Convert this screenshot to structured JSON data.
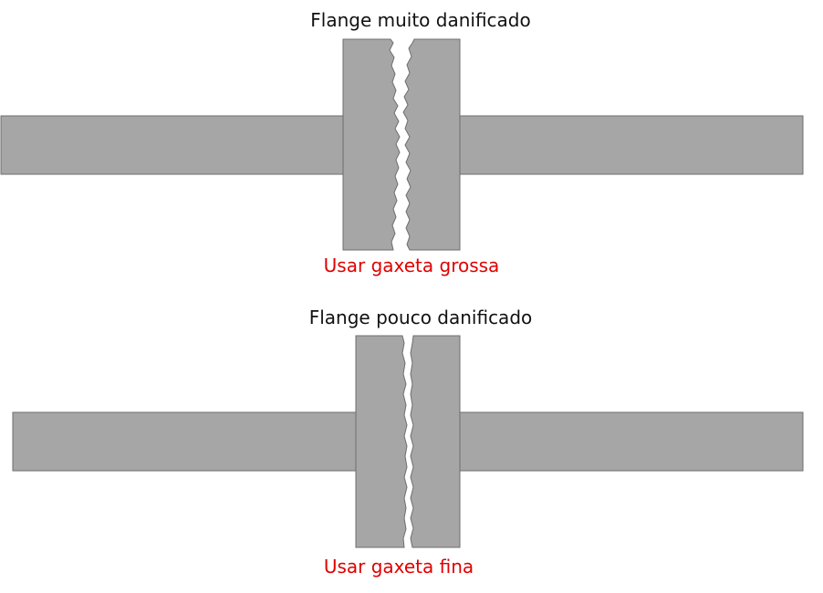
{
  "colors": {
    "metal": "#a6a6a6",
    "outline": "#6e6e6e",
    "title_text": "#111111",
    "note_text": "#e00000"
  },
  "diagrams": [
    {
      "title": "Flange muito danificado",
      "note": "Usar gaxeta grossa"
    },
    {
      "title": "Flange pouco danificado",
      "note": "Usar gaxeta fina"
    }
  ]
}
